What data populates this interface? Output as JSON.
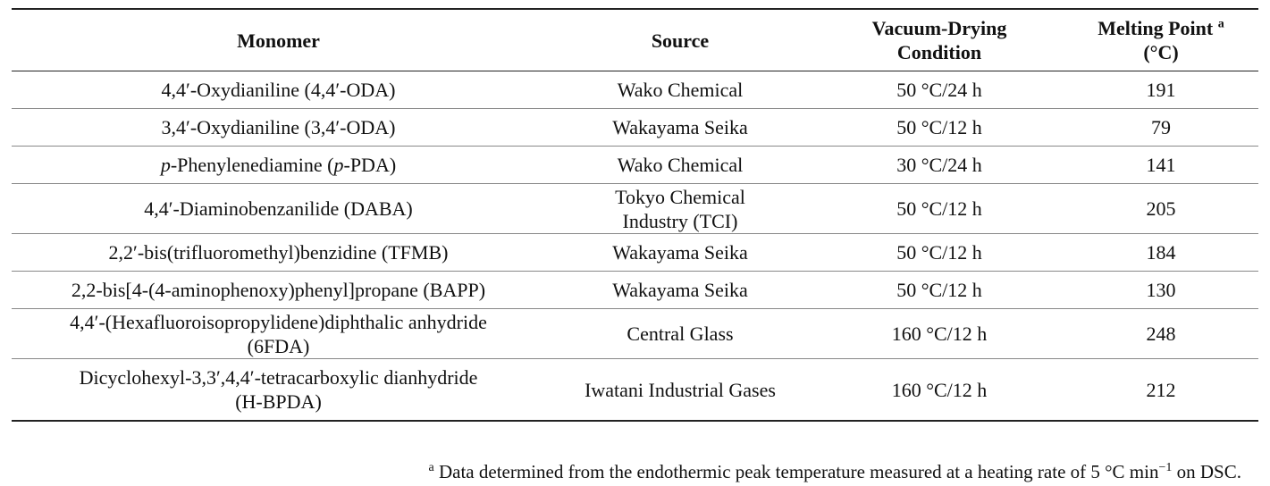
{
  "table": {
    "headers": {
      "monomer": "Monomer",
      "source": "Source",
      "vacuum_line1": "Vacuum-Drying",
      "vacuum_line2": "Condition",
      "melting_line1": "Melting Point",
      "melting_sup": "a",
      "melting_line2": "(°C)"
    },
    "rows": [
      {
        "monomer": "4,4′-Oxydianiline (4,4′-ODA)",
        "source": "Wako Chemical",
        "condition": "50 °C/24 h",
        "melting_point": "191"
      },
      {
        "monomer": "3,4′-Oxydianiline (3,4′-ODA)",
        "source": "Wakayama Seika",
        "condition": "50 °C/12 h",
        "melting_point": "79"
      },
      {
        "monomer_italic_1": "p",
        "monomer_mid": "-Phenylenediamine (",
        "monomer_italic_2": "p",
        "monomer_end": "-PDA)",
        "source": "Wako Chemical",
        "condition": "30 °C/24 h",
        "melting_point": "141"
      },
      {
        "monomer": "4,4′-Diaminobenzanilide (DABA)",
        "source_line1": "Tokyo Chemical",
        "source_line2": "Industry (TCI)",
        "condition": "50 °C/12 h",
        "melting_point": "205"
      },
      {
        "monomer": "2,2′-bis(trifluoromethyl)benzidine (TFMB)",
        "source": "Wakayama Seika",
        "condition": "50 °C/12 h",
        "melting_point": "184"
      },
      {
        "monomer": "2,2-bis[4-(4-aminophenoxy)phenyl]propane (BAPP)",
        "source": "Wakayama Seika",
        "condition": "50 °C/12 h",
        "melting_point": "130"
      },
      {
        "monomer_line1": "4,4′-(Hexafluoroisopropylidene)diphthalic anhydride",
        "monomer_line2": "(6FDA)",
        "source": "Central Glass",
        "condition": "160 °C/12 h",
        "melting_point": "248"
      },
      {
        "monomer_line1": "Dicyclohexyl-3,3′,4,4′-tetracarboxylic dianhydride",
        "monomer_line2": "(H-BPDA)",
        "source": "Iwatani Industrial Gases",
        "condition": "160 °C/12 h",
        "melting_point": "212"
      }
    ]
  },
  "footnote": {
    "marker": "a",
    "text_before": " Data determined from the endothermic peak temperature measured at a heating rate of 5 °C min",
    "exponent": "−1",
    "text_after": " on DSC."
  }
}
